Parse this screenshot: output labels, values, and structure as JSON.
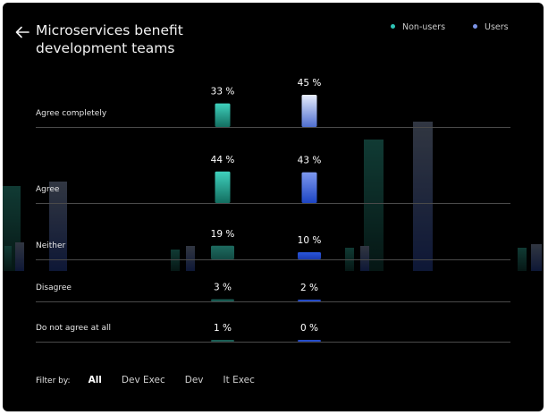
{
  "header": {
    "title": "Microservices benefit development teams",
    "back_icon": "arrow-left-icon"
  },
  "legend": {
    "non_users": "Non-users",
    "users": "Users"
  },
  "colors": {
    "non_users": "#2ec4b6",
    "users": "#2f5bd9",
    "background": "#000000",
    "divider": "#4a4a4a"
  },
  "chart_data": {
    "type": "bar",
    "orientation": "vertical-grouped-rows",
    "categories": [
      "Agree completely",
      "Agree",
      "Neither",
      "Disagree",
      "Do not agree at all"
    ],
    "series": [
      {
        "name": "Non-users",
        "values": [
          33,
          44,
          19,
          3,
          1
        ],
        "labels": [
          "33 %",
          "44 %",
          "19 %",
          "3 %",
          "1 %"
        ]
      },
      {
        "name": "Users",
        "values": [
          45,
          43,
          10,
          2,
          0
        ],
        "labels": [
          "45 %",
          "43 %",
          "10 %",
          "2 %",
          "0 %"
        ]
      }
    ],
    "unit": "%",
    "grid": "row dividers",
    "legend_position": "top-right"
  },
  "filter": {
    "label": "Filter by:",
    "options": [
      "All",
      "Dev Exec",
      "Dev",
      "It Exec"
    ],
    "active": "All"
  }
}
